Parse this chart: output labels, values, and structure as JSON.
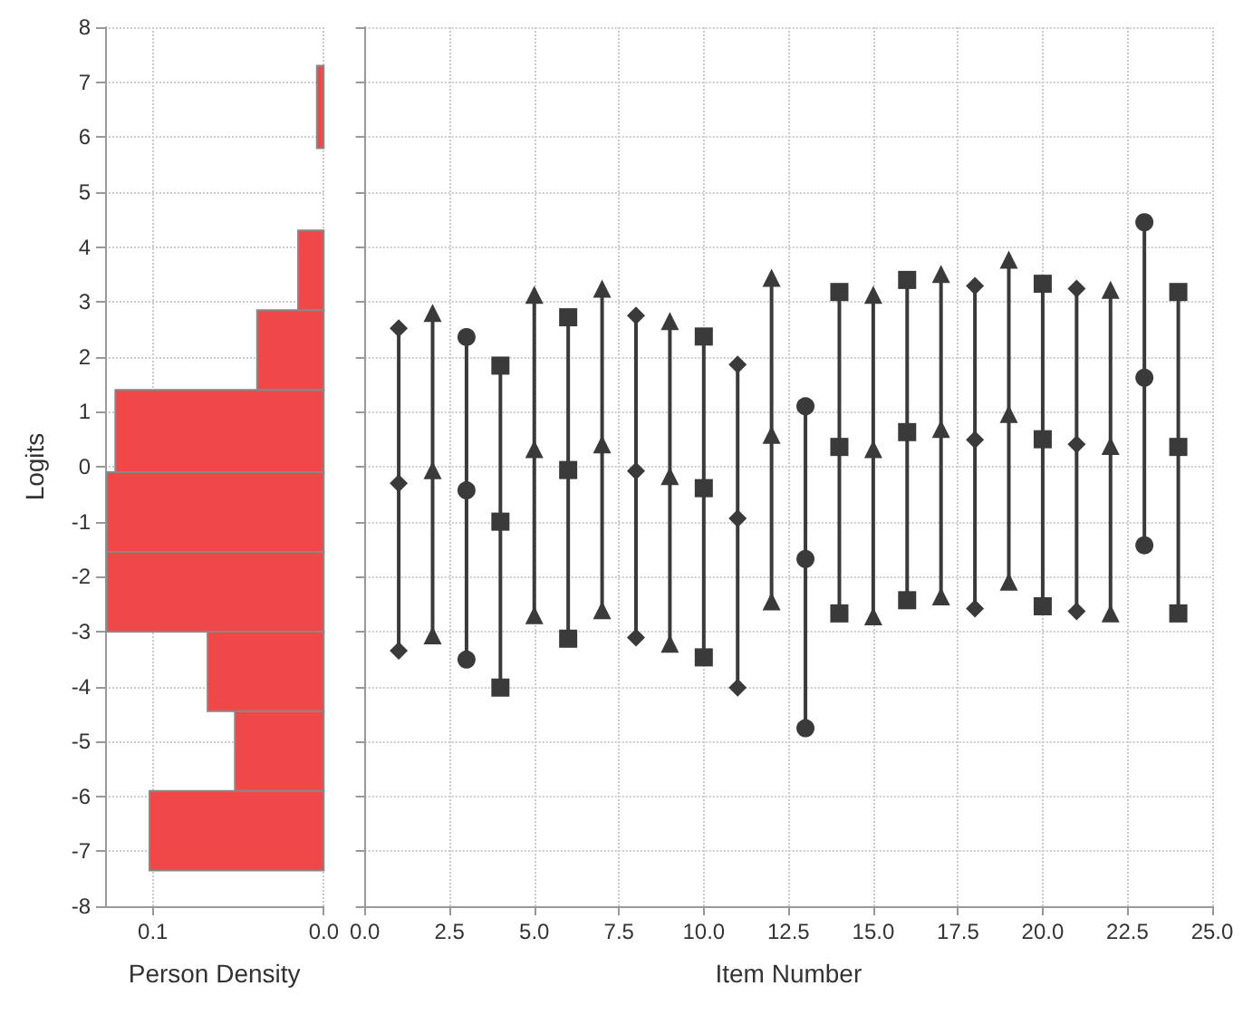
{
  "chart_data": [
    {
      "type": "histogram",
      "orientation": "horizontal",
      "xlabel": "Person Density",
      "ylabel": "Logits",
      "color": "#f04848",
      "bins": [
        -7.35,
        -5.9,
        -4.45,
        -3.0,
        -1.55,
        -0.1,
        1.4,
        2.85,
        4.3,
        5.8,
        7.3
      ],
      "values": [
        0.102,
        0.052,
        0.068,
        0.127,
        0.127,
        0.122,
        0.039,
        0.015,
        0,
        0.004
      ],
      "xlim": [
        0.128,
        0
      ],
      "xticks": [
        0.1,
        {
          "value": 0,
          "label": "0.0"
        }
      ],
      "ylim": [
        -8,
        8
      ],
      "yticks": [
        -8,
        -7,
        -6,
        -5,
        -4,
        -3,
        -2,
        -1,
        0,
        1,
        2,
        3,
        4,
        5,
        6,
        7,
        8
      ],
      "grid": true
    },
    {
      "type": "line",
      "xlabel": "Item Number",
      "tick_labels": "x",
      "grid": true,
      "xlim": [
        0,
        25
      ],
      "xticks": [
        {
          "value": 0,
          "label": "0.0"
        },
        2.5,
        {
          "value": 5,
          "label": "5.0"
        },
        7.5,
        {
          "value": 10,
          "label": "10.0"
        },
        12.5,
        {
          "value": 15,
          "label": "15.0"
        },
        17.5,
        {
          "value": 20,
          "label": "20.0"
        },
        22.5,
        {
          "value": 25,
          "label": "25.0"
        }
      ],
      "ylim": [
        -8,
        8
      ],
      "yticks": [
        -8,
        -7,
        -6,
        -5,
        -4,
        -3,
        -2,
        -1,
        0,
        1,
        2,
        3,
        4,
        5,
        6,
        7,
        8
      ],
      "series": [
        {
          "x": [
            1,
            1,
            1
          ],
          "values": [
            -3.35,
            -0.3,
            2.52
          ],
          "marker": "diamond",
          "color": "#3a3a3a"
        },
        {
          "x": [
            2,
            2,
            2
          ],
          "values": [
            -3.07,
            -0.06,
            2.8
          ],
          "marker": "triangle",
          "color": "#3a3a3a"
        },
        {
          "x": [
            3,
            3,
            3
          ],
          "values": [
            -3.51,
            -0.43,
            2.36
          ],
          "marker": "circle",
          "color": "#3a3a3a"
        },
        {
          "x": [
            4,
            4,
            4
          ],
          "values": [
            -4.02,
            -1.0,
            1.84
          ],
          "marker": "square",
          "color": "#3a3a3a"
        },
        {
          "x": [
            5,
            5,
            5
          ],
          "values": [
            -2.7,
            0.32,
            3.13
          ],
          "marker": "triangle",
          "color": "#3a3a3a"
        },
        {
          "x": [
            6,
            6,
            6
          ],
          "values": [
            -3.13,
            -0.06,
            2.72
          ],
          "marker": "square",
          "color": "#3a3a3a"
        },
        {
          "x": [
            7,
            7,
            7
          ],
          "values": [
            -2.61,
            0.41,
            3.24
          ],
          "marker": "triangle",
          "color": "#3a3a3a"
        },
        {
          "x": [
            8,
            8,
            8
          ],
          "values": [
            -3.11,
            -0.08,
            2.75
          ],
          "marker": "diamond",
          "color": "#3a3a3a"
        },
        {
          "x": [
            9,
            9,
            9
          ],
          "values": [
            -3.22,
            -0.17,
            2.65
          ],
          "marker": "triangle",
          "color": "#3a3a3a"
        },
        {
          "x": [
            10,
            10,
            10
          ],
          "values": [
            -3.47,
            -0.39,
            2.37
          ],
          "marker": "square",
          "color": "#3a3a3a"
        },
        {
          "x": [
            11,
            11,
            11
          ],
          "values": [
            -4.02,
            -0.94,
            1.86
          ],
          "marker": "diamond",
          "color": "#3a3a3a"
        },
        {
          "x": [
            12,
            12,
            12
          ],
          "values": [
            -2.45,
            0.58,
            3.44
          ],
          "marker": "triangle",
          "color": "#3a3a3a"
        },
        {
          "x": [
            13,
            13,
            13
          ],
          "values": [
            -4.76,
            -1.68,
            1.1
          ],
          "marker": "circle",
          "color": "#3a3a3a"
        },
        {
          "x": [
            14,
            14,
            14
          ],
          "values": [
            -2.67,
            0.36,
            3.18
          ],
          "marker": "square",
          "color": "#3a3a3a"
        },
        {
          "x": [
            15,
            15,
            15
          ],
          "values": [
            -2.72,
            0.32,
            3.13
          ],
          "marker": "triangle",
          "color": "#3a3a3a"
        },
        {
          "x": [
            16,
            16,
            16
          ],
          "values": [
            -2.43,
            0.63,
            3.4
          ],
          "marker": "square",
          "color": "#3a3a3a"
        },
        {
          "x": [
            17,
            17,
            17
          ],
          "values": [
            -2.36,
            0.69,
            3.51
          ],
          "marker": "triangle",
          "color": "#3a3a3a"
        },
        {
          "x": [
            18,
            18,
            18
          ],
          "values": [
            -2.58,
            0.49,
            3.29
          ],
          "marker": "diamond",
          "color": "#3a3a3a"
        },
        {
          "x": [
            19,
            19,
            19
          ],
          "values": [
            -2.09,
            0.96,
            3.77
          ],
          "marker": "triangle",
          "color": "#3a3a3a"
        },
        {
          "x": [
            20,
            20,
            20
          ],
          "values": [
            -2.54,
            0.5,
            3.33
          ],
          "marker": "square",
          "color": "#3a3a3a"
        },
        {
          "x": [
            21,
            21,
            21
          ],
          "values": [
            -2.63,
            0.41,
            3.24
          ],
          "marker": "diamond",
          "color": "#3a3a3a"
        },
        {
          "x": [
            22,
            22,
            22
          ],
          "values": [
            -2.67,
            0.38,
            3.22
          ],
          "marker": "triangle",
          "color": "#3a3a3a"
        },
        {
          "x": [
            23,
            23,
            23
          ],
          "values": [
            -1.43,
            1.62,
            4.45
          ],
          "marker": "circle",
          "color": "#3a3a3a"
        },
        {
          "x": [
            24,
            24,
            24
          ],
          "values": [
            -2.67,
            0.36,
            3.18
          ],
          "marker": "square",
          "color": "#3a3a3a"
        }
      ]
    }
  ]
}
